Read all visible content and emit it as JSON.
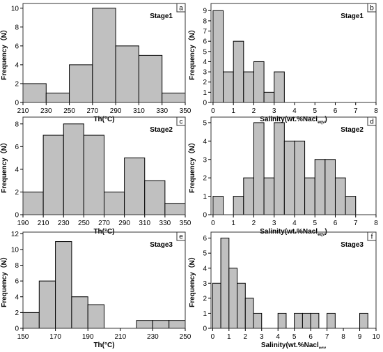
{
  "chart_data": [
    {
      "type": "bar",
      "panel": "a",
      "stage": "Stage1",
      "xlabel": "Th(°C)",
      "ylabel": "Frequency（N）",
      "xlim": [
        210,
        350
      ],
      "ylim": [
        0,
        10.5
      ],
      "xticks": [
        210,
        230,
        250,
        270,
        290,
        310,
        330,
        350
      ],
      "yticks": [
        0,
        2,
        4,
        6,
        8,
        10
      ],
      "bins": [
        [
          210,
          230,
          2
        ],
        [
          230,
          250,
          1
        ],
        [
          250,
          270,
          4
        ],
        [
          270,
          290,
          10
        ],
        [
          290,
          310,
          6
        ],
        [
          310,
          330,
          5
        ],
        [
          330,
          350,
          1
        ]
      ]
    },
    {
      "type": "bar",
      "panel": "b",
      "stage": "Stage1",
      "xlabel": "Salinity(wt.%Nacl",
      "xlabel_sub": "eqv",
      "xlabel_end": ")",
      "ylabel": "Frequency（N）",
      "xlim": [
        -0.1,
        8
      ],
      "ylim": [
        0,
        9.7
      ],
      "xticks": [
        0,
        1,
        2,
        3,
        4,
        5,
        6,
        7,
        8
      ],
      "yticks": [
        0,
        1,
        2,
        3,
        4,
        5,
        6,
        7,
        8,
        9
      ],
      "bins": [
        [
          0,
          0.5,
          9
        ],
        [
          0.5,
          1,
          3
        ],
        [
          1,
          1.5,
          6
        ],
        [
          1.5,
          2,
          3
        ],
        [
          2,
          2.5,
          4
        ],
        [
          2.5,
          3,
          1
        ],
        [
          3,
          3.5,
          3
        ]
      ]
    },
    {
      "type": "bar",
      "panel": "c",
      "stage": "Stage2",
      "xlabel": "Th(°C)",
      "ylabel": "Frequency（N）",
      "xlim": [
        190,
        350
      ],
      "ylim": [
        0,
        8.6
      ],
      "xticks": [
        190,
        210,
        230,
        250,
        270,
        290,
        310,
        330,
        350
      ],
      "yticks": [
        0,
        2,
        4,
        6,
        8
      ],
      "bins": [
        [
          190,
          210,
          2
        ],
        [
          210,
          230,
          7
        ],
        [
          230,
          250,
          8
        ],
        [
          250,
          270,
          7
        ],
        [
          270,
          290,
          2
        ],
        [
          290,
          310,
          5
        ],
        [
          310,
          330,
          3
        ],
        [
          330,
          350,
          1
        ]
      ]
    },
    {
      "type": "bar",
      "panel": "d",
      "stage": "Stage2",
      "xlabel": "Salinity(wt.%Nacl",
      "xlabel_sub": "eqv",
      "xlabel_end": ")",
      "ylabel": "Frequency（N）",
      "xlim": [
        -0.1,
        8
      ],
      "ylim": [
        0,
        5.3
      ],
      "xticks": [
        0,
        1,
        2,
        3,
        4,
        5,
        6,
        7,
        8
      ],
      "yticks": [
        0,
        1,
        2,
        3,
        4,
        5
      ],
      "bins": [
        [
          0,
          0.5,
          1
        ],
        [
          1,
          1.5,
          1
        ],
        [
          1.5,
          2,
          2
        ],
        [
          2,
          2.5,
          5
        ],
        [
          2.5,
          3,
          2
        ],
        [
          3,
          3.5,
          5
        ],
        [
          3.5,
          4,
          4
        ],
        [
          4,
          4.5,
          4
        ],
        [
          4.5,
          5,
          2
        ],
        [
          5,
          5.5,
          3
        ],
        [
          5.5,
          6,
          3
        ],
        [
          6,
          6.5,
          2
        ],
        [
          6.5,
          7,
          1
        ]
      ]
    },
    {
      "type": "bar",
      "panel": "e",
      "stage": "Stage3",
      "xlabel": "Th(°C)",
      "ylabel": "Frequency（N）",
      "xlim": [
        150,
        250
      ],
      "ylim": [
        0,
        12.2
      ],
      "xticks": [
        150,
        170,
        190,
        210,
        230,
        250
      ],
      "yticks": [
        0,
        2,
        4,
        6,
        8,
        10,
        12
      ],
      "bins": [
        [
          150,
          160,
          2
        ],
        [
          160,
          170,
          6
        ],
        [
          170,
          180,
          11
        ],
        [
          180,
          190,
          4
        ],
        [
          190,
          200,
          3
        ],
        [
          220,
          230,
          1
        ],
        [
          230,
          240,
          1
        ],
        [
          240,
          250,
          1
        ]
      ]
    },
    {
      "type": "bar",
      "panel": "f",
      "stage": "Stage3",
      "xlabel": "Salinity(wt.%Nacl",
      "xlabel_sub": "eqv",
      "xlabel_end": "",
      "ylabel": "Frequency（N）",
      "xlim": [
        -0.1,
        10
      ],
      "ylim": [
        0,
        6.4
      ],
      "xticks": [
        0,
        1,
        2,
        3,
        4,
        5,
        6,
        7,
        8,
        9,
        10
      ],
      "yticks": [
        0,
        1,
        2,
        3,
        4,
        5,
        6
      ],
      "bins": [
        [
          0,
          0.5,
          3
        ],
        [
          0.5,
          1,
          6
        ],
        [
          1,
          1.5,
          4
        ],
        [
          1.5,
          2,
          3
        ],
        [
          2,
          2.5,
          2
        ],
        [
          2.5,
          3,
          1
        ],
        [
          4,
          4.5,
          1
        ],
        [
          5,
          5.5,
          1
        ],
        [
          5.5,
          6,
          1
        ],
        [
          6,
          6.5,
          1
        ],
        [
          7,
          7.5,
          1
        ],
        [
          9,
          9.5,
          1
        ]
      ]
    }
  ],
  "style": {
    "bar_fill": "#c0c0c0",
    "bar_stroke": "#000000",
    "frame": "#333333"
  }
}
